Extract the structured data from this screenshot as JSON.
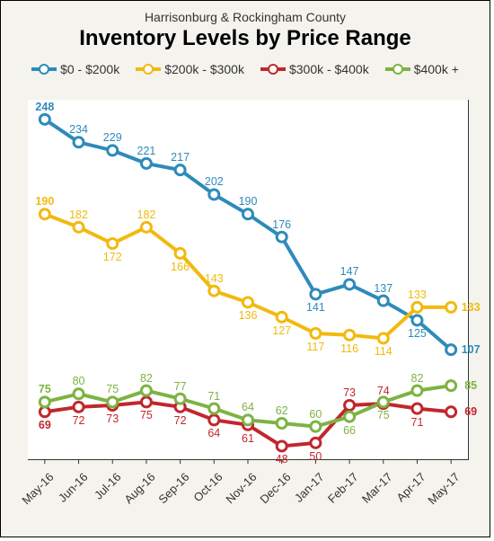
{
  "header": {
    "subtitle": "Harrisonburg & Rockingham County",
    "title": "Inventory Levels by Price Range"
  },
  "chart": {
    "type": "line",
    "background_color": "#ffffff",
    "card_background": "#f4f3ed",
    "grid_color": "#cccccc",
    "categories": [
      "May-16",
      "Jun-16",
      "Jul-16",
      "Aug-16",
      "Sep-16",
      "Oct-16",
      "Nov-16",
      "Dec-16",
      "Jan-17",
      "Feb-17",
      "Mar-17",
      "Apr-17",
      "May-17"
    ],
    "ylim": [
      40,
      260
    ],
    "line_width": 4,
    "marker_radius": 5.5,
    "marker_fill": "#ffffff",
    "label_fontsize": 12.5,
    "xlabel_rotate": -45,
    "series": [
      {
        "name": "$0 - $200k",
        "color": "#2e8bba",
        "values": [
          248,
          234,
          229,
          221,
          217,
          202,
          190,
          176,
          141,
          147,
          137,
          125,
          107
        ],
        "label_pos": [
          "above",
          "above",
          "above",
          "above",
          "above",
          "above",
          "above",
          "above",
          "below",
          "above",
          "above",
          "below",
          "right"
        ]
      },
      {
        "name": "$200k - $300k",
        "color": "#f2b90f",
        "values": [
          190,
          182,
          172,
          182,
          166,
          143,
          136,
          127,
          117,
          116,
          114,
          133,
          133
        ],
        "label_pos": [
          "above",
          "above",
          "below",
          "above",
          "below",
          "above",
          "below",
          "below",
          "below",
          "below",
          "below",
          "above",
          "right"
        ]
      },
      {
        "name": "$300k - $400k",
        "color": "#c1272d",
        "values": [
          69,
          72,
          73,
          75,
          72,
          64,
          61,
          48,
          50,
          73,
          74,
          71,
          69
        ],
        "label_pos": [
          "below",
          "below",
          "below",
          "below",
          "below",
          "below",
          "below",
          "below",
          "below",
          "above",
          "above",
          "below",
          "right"
        ]
      },
      {
        "name": "$400k +",
        "color": "#7db343",
        "values": [
          75,
          80,
          75,
          82,
          77,
          71,
          64,
          62,
          60,
          66,
          75,
          82,
          85
        ],
        "label_pos": [
          "above",
          "above",
          "above",
          "above",
          "above",
          "above",
          "above",
          "above",
          "above",
          "below",
          "below",
          "above",
          "right"
        ]
      }
    ]
  }
}
